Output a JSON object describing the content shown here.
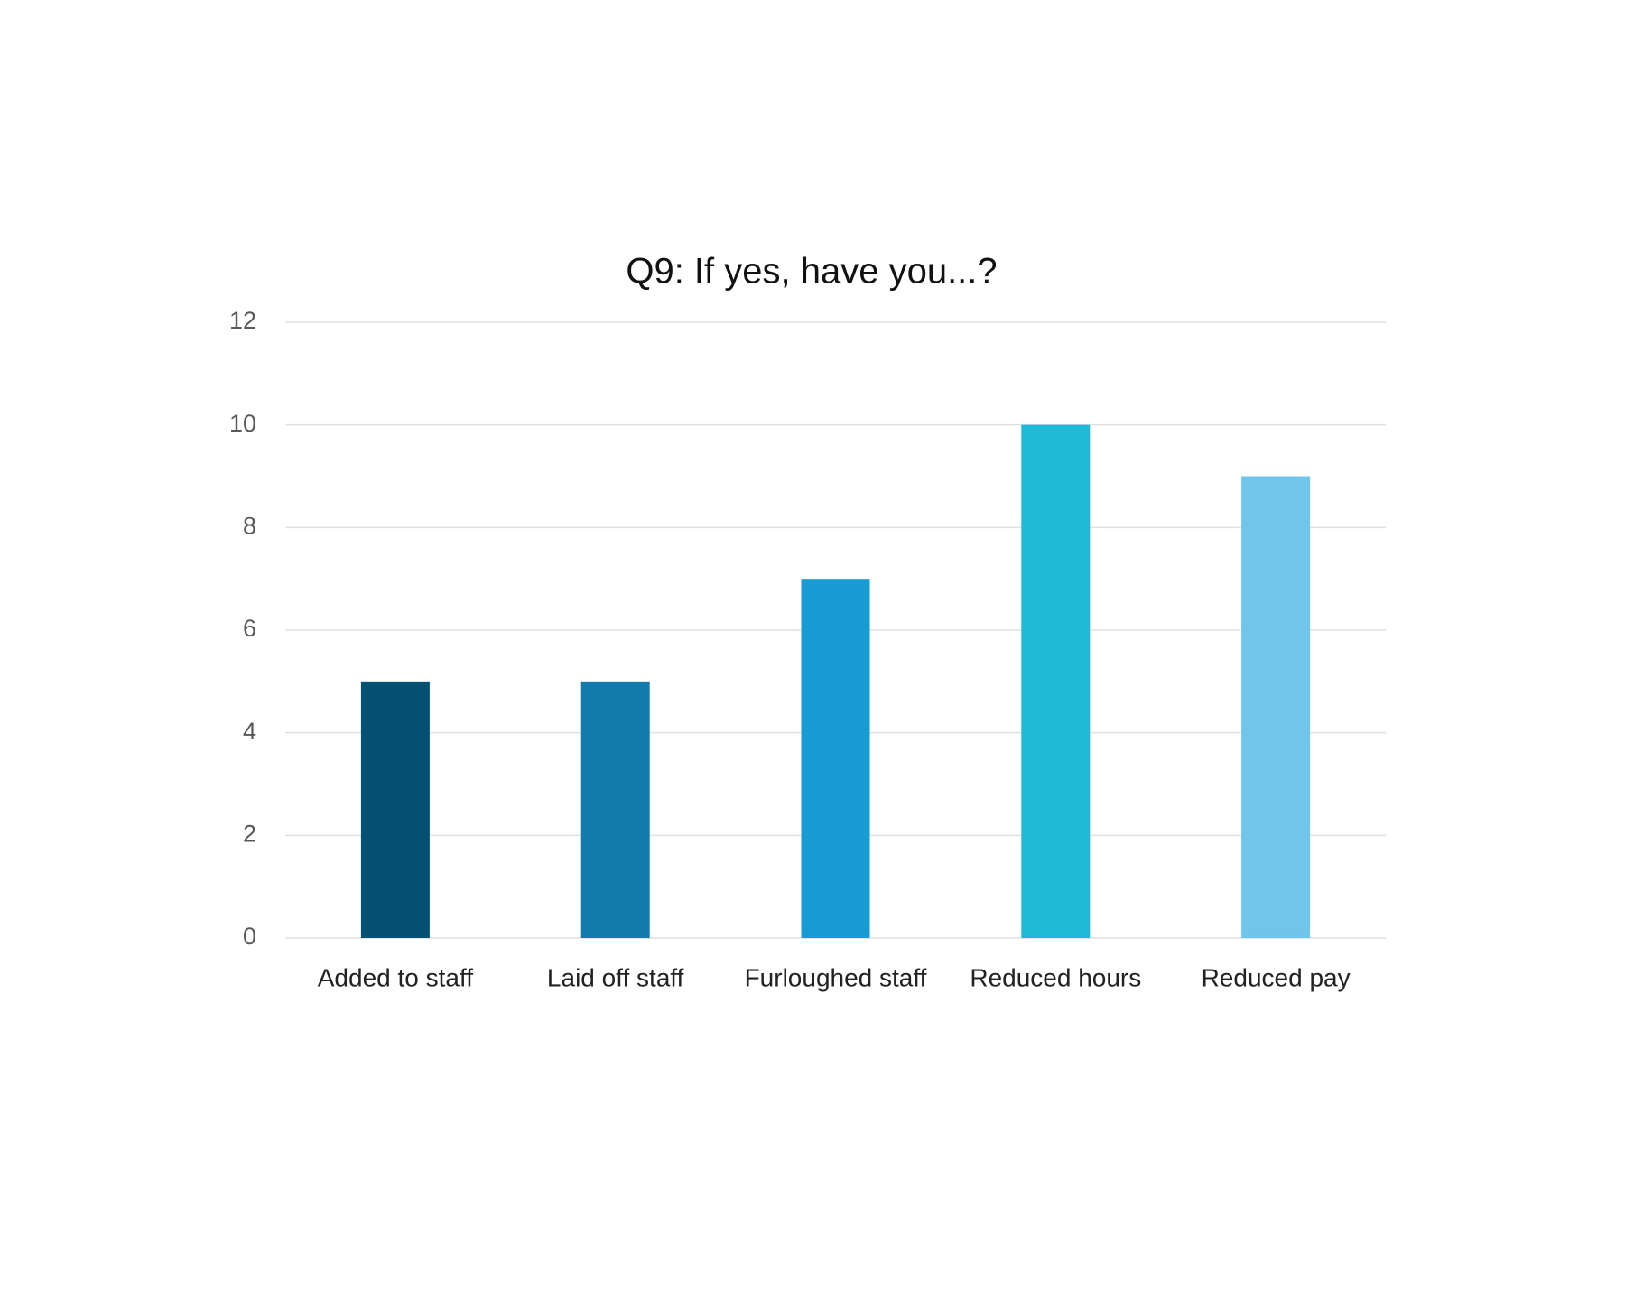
{
  "chart_data": {
    "type": "bar",
    "title": "Q9: If yes, have you...?",
    "categories": [
      "Added to staff",
      "Laid off staff",
      "Furloughed staff",
      "Reduced hours",
      "Reduced pay"
    ],
    "values": [
      5,
      5,
      7,
      10,
      9
    ],
    "colors": [
      "#045174",
      "#127bab",
      "#189bd3",
      "#1dbad8",
      "#70c6ea"
    ],
    "ylim": [
      0,
      12
    ],
    "yticks": [
      0,
      2,
      4,
      6,
      8,
      10,
      12
    ],
    "grid": true
  }
}
